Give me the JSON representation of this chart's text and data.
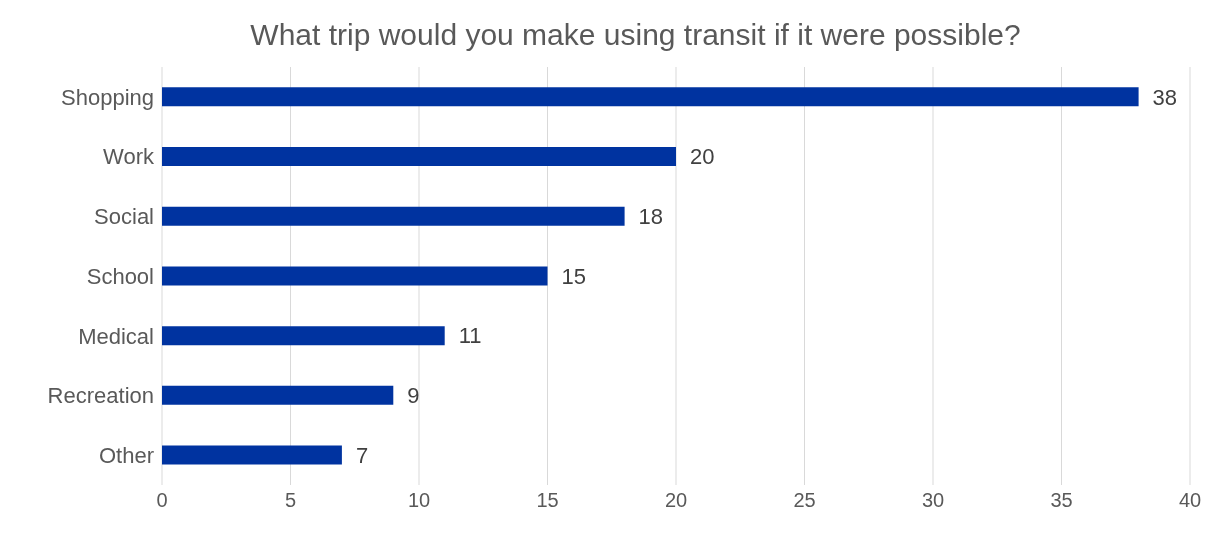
{
  "chart_data": {
    "type": "bar",
    "orientation": "horizontal",
    "title": "What trip would you make using transit if it were possible?",
    "categories": [
      "Shopping",
      "Work",
      "Social",
      "School",
      "Medical",
      "Recreation",
      "Other"
    ],
    "values": [
      38,
      20,
      18,
      15,
      11,
      9,
      7
    ],
    "color": "#0033a0",
    "xlim": [
      0,
      40
    ],
    "xticks": [
      0,
      5,
      10,
      15,
      20,
      25,
      30,
      35,
      40
    ],
    "grid": "x",
    "data_labels": true
  }
}
